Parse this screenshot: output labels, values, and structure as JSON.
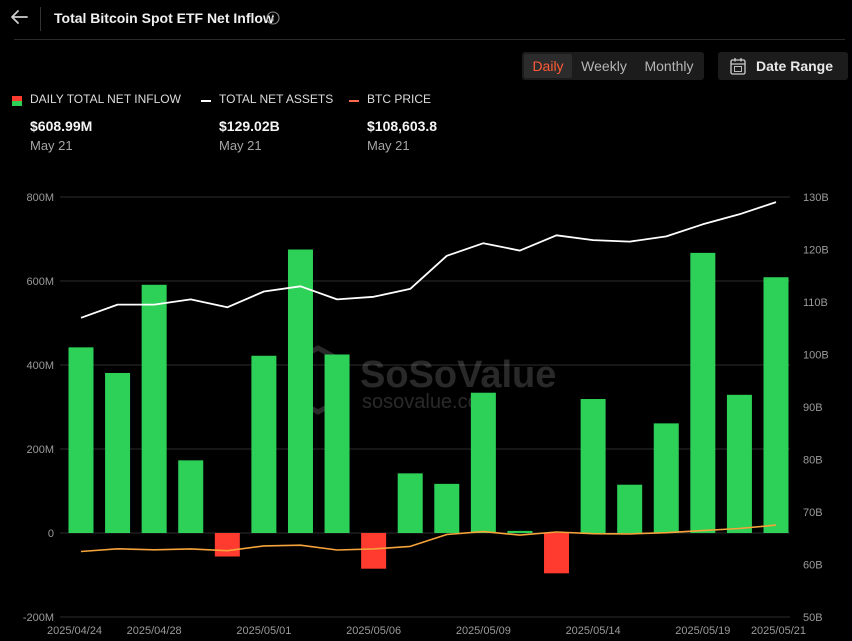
{
  "header": {
    "title": "Total Bitcoin Spot ETF Net Inflow"
  },
  "controls": {
    "periods": [
      "Daily",
      "Weekly",
      "Monthly"
    ],
    "active_period": "Daily",
    "date_range_label": "Date Range"
  },
  "metrics": [
    {
      "label": "DAILY TOTAL NET INFLOW",
      "value": "$608.99M",
      "date": "May 21",
      "icon": "bar-legend-icon"
    },
    {
      "label": "TOTAL NET ASSETS",
      "value": "$129.02B",
      "date": "May 21",
      "icon": "line-legend-icon"
    },
    {
      "label": "BTC PRICE",
      "value": "$108,603.8",
      "date": "May 21",
      "icon": "line-legend-icon"
    }
  ],
  "watermark": {
    "brand": "SoSoValue",
    "domain": "sosovalue.com"
  },
  "colors": {
    "positive": "#2ed158",
    "negative": "#ff3b30",
    "assets_line": "#ffffff",
    "price_line": "#f5a33a",
    "accent": "#ff5a36"
  },
  "chart_data": {
    "type": "bar",
    "x": [
      "2025/04/24",
      "2025/04/25",
      "2025/04/28",
      "2025/04/29",
      "2025/04/30",
      "2025/05/01",
      "2025/05/02",
      "2025/05/05",
      "2025/05/06",
      "2025/05/07",
      "2025/05/08",
      "2025/05/09",
      "2025/05/12",
      "2025/05/13",
      "2025/05/14",
      "2025/05/15",
      "2025/05/16",
      "2025/05/19",
      "2025/05/20",
      "2025/05/21"
    ],
    "tick_labels": [
      "2025/04/24",
      "2025/04/28",
      "2025/05/01",
      "2025/05/06",
      "2025/05/09",
      "2025/05/14",
      "2025/05/19",
      "2025/05/21"
    ],
    "series": [
      {
        "name": "DAILY TOTAL NET INFLOW",
        "type": "bar",
        "axis": "left",
        "values": [
          442,
          381,
          591,
          173,
          -56,
          422,
          675,
          425,
          -85,
          142,
          117,
          334,
          5,
          -96,
          319,
          115,
          261,
          667,
          329,
          608.99
        ]
      },
      {
        "name": "TOTAL NET ASSETS",
        "type": "line",
        "axis": "right",
        "values": [
          107,
          109.5,
          109.5,
          110.5,
          109,
          112,
          113,
          110.5,
          111,
          112.5,
          118.8,
          121.2,
          119.8,
          122.7,
          121.8,
          121.5,
          122.5,
          124.8,
          126.7,
          129.02
        ]
      },
      {
        "name": "BTC PRICE",
        "type": "line",
        "axis": "price",
        "values": [
          93200,
          94800,
          94200,
          94700,
          93700,
          96500,
          96900,
          94100,
          94700,
          96200,
          103100,
          104800,
          102800,
          104600,
          103600,
          103500,
          104200,
          105400,
          106600,
          108603.8
        ]
      }
    ],
    "y_left": {
      "ticks": [
        "800M",
        "600M",
        "400M",
        "200M",
        "0",
        "-200M"
      ],
      "range": [
        -200,
        800
      ]
    },
    "y_right": {
      "ticks": [
        "130B",
        "120B",
        "110B",
        "100B",
        "90B",
        "80B",
        "70B",
        "60B",
        "50B"
      ],
      "range": [
        50,
        130
      ]
    },
    "price_range": [
      55000,
      300000
    ],
    "grid": true,
    "legend": "top-left"
  }
}
